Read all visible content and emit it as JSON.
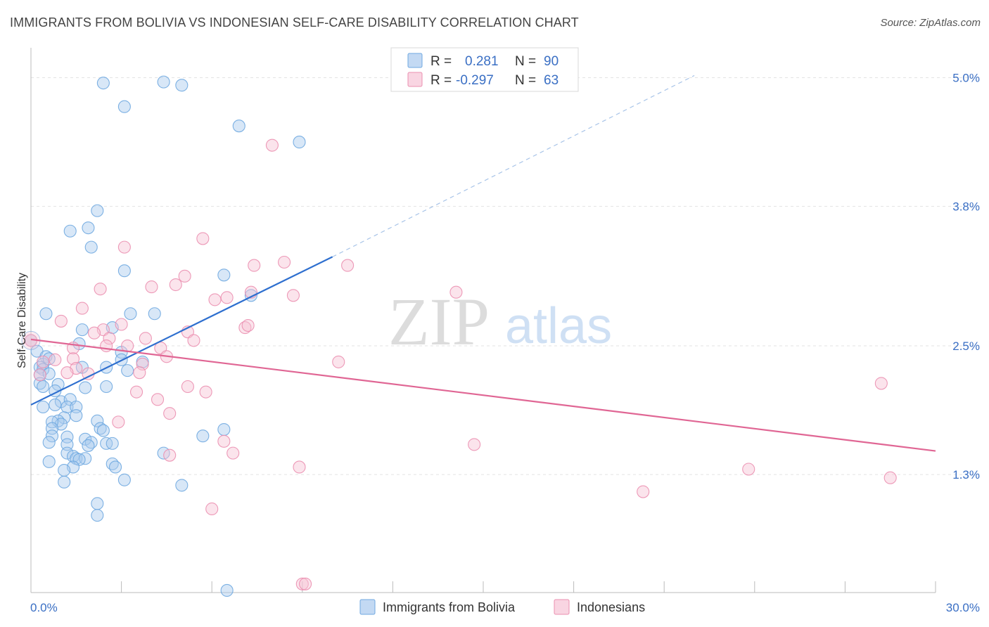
{
  "header": {
    "title": "IMMIGRANTS FROM BOLIVIA VS INDONESIAN SELF-CARE DISABILITY CORRELATION CHART",
    "source": "Source: ZipAtlas.com"
  },
  "watermark": {
    "part1": "ZIP",
    "part2": "atlas"
  },
  "colors": {
    "blue": "#6fa8e0",
    "blue_fill": "#a9c9ee",
    "blue_line": "#2e6fcf",
    "pink": "#eb8fb0",
    "pink_fill": "#f6c3d5",
    "pink_line": "#e06694",
    "grid": "#e3e3e3",
    "tick_text": "#3a6fc4"
  },
  "legend": {
    "rows": [
      {
        "r_label": "R =",
        "r_value": "0.281",
        "n_label": "N =",
        "n_value": "90"
      },
      {
        "r_label": "R =",
        "r_value": "-0.297",
        "n_label": "N =",
        "n_value": "63"
      }
    ]
  },
  "bottom_legend": [
    "Immigrants from Bolivia",
    "Indonesians"
  ],
  "chart_data": {
    "type": "scatter",
    "title": "IMMIGRANTS FROM BOLIVIA VS INDONESIAN SELF-CARE DISABILITY CORRELATION CHART",
    "xlabel": "",
    "ylabel": "Self-Care Disability",
    "xlim": [
      0,
      30
    ],
    "ylim": [
      0.2,
      5.2
    ],
    "x_tick_labels": [
      {
        "value": 0,
        "label": "0.0%"
      },
      {
        "value": 30,
        "label": "30.0%"
      }
    ],
    "y_tick_labels": [
      {
        "value": 5.0,
        "label": "5.0%"
      },
      {
        "value": 3.8,
        "label": "3.8%"
      },
      {
        "value": 2.5,
        "label": "2.5%"
      },
      {
        "value": 1.3,
        "label": "1.3%"
      }
    ],
    "grid": true,
    "legend_position": "top-center",
    "series": [
      {
        "name": "Immigrants from Bolivia",
        "R": 0.281,
        "N": 90,
        "trend": {
          "x": [
            0,
            10
          ],
          "y": [
            1.95,
            3.33
          ],
          "dashed_to": {
            "x": 22,
            "y": 5.02
          }
        },
        "points": [
          [
            2.4,
            4.95
          ],
          [
            4.4,
            4.96
          ],
          [
            5.0,
            4.93
          ],
          [
            3.1,
            4.73
          ],
          [
            6.9,
            4.55
          ],
          [
            8.9,
            4.4
          ],
          [
            2.2,
            3.76
          ],
          [
            1.3,
            3.57
          ],
          [
            1.9,
            3.6
          ],
          [
            2.0,
            3.42
          ],
          [
            3.1,
            3.2
          ],
          [
            6.4,
            3.16
          ],
          [
            7.3,
            2.97
          ],
          [
            0.5,
            2.8
          ],
          [
            3.3,
            2.8
          ],
          [
            4.1,
            2.8
          ],
          [
            1.7,
            2.65
          ],
          [
            2.7,
            2.67
          ],
          [
            0.0,
            2.55
          ],
          [
            0.2,
            2.45
          ],
          [
            1.6,
            2.52
          ],
          [
            3.0,
            2.44
          ],
          [
            0.5,
            2.4
          ],
          [
            0.4,
            2.33
          ],
          [
            0.6,
            2.38
          ],
          [
            0.3,
            2.3
          ],
          [
            0.4,
            2.28
          ],
          [
            2.5,
            2.3
          ],
          [
            3.0,
            2.37
          ],
          [
            3.7,
            2.35
          ],
          [
            1.7,
            2.3
          ],
          [
            0.3,
            2.23
          ],
          [
            0.6,
            2.24
          ],
          [
            3.2,
            2.27
          ],
          [
            0.3,
            2.15
          ],
          [
            0.4,
            2.12
          ],
          [
            0.9,
            2.14
          ],
          [
            1.8,
            2.11
          ],
          [
            2.5,
            2.12
          ],
          [
            0.8,
            2.08
          ],
          [
            1.0,
            1.98
          ],
          [
            1.3,
            2.0
          ],
          [
            0.4,
            1.93
          ],
          [
            0.8,
            1.95
          ],
          [
            1.2,
            1.93
          ],
          [
            1.5,
            1.93
          ],
          [
            1.1,
            1.83
          ],
          [
            1.5,
            1.85
          ],
          [
            0.9,
            1.8
          ],
          [
            2.2,
            1.8
          ],
          [
            1.0,
            1.77
          ],
          [
            0.7,
            1.79
          ],
          [
            0.7,
            1.73
          ],
          [
            2.3,
            1.73
          ],
          [
            2.4,
            1.71
          ],
          [
            6.4,
            1.72
          ],
          [
            0.7,
            1.66
          ],
          [
            5.7,
            1.66
          ],
          [
            1.2,
            1.65
          ],
          [
            1.8,
            1.63
          ],
          [
            0.6,
            1.6
          ],
          [
            1.2,
            1.58
          ],
          [
            2.0,
            1.6
          ],
          [
            2.5,
            1.59
          ],
          [
            2.7,
            1.59
          ],
          [
            1.9,
            1.57
          ],
          [
            1.2,
            1.5
          ],
          [
            4.4,
            1.5
          ],
          [
            1.4,
            1.47
          ],
          [
            1.5,
            1.45
          ],
          [
            1.8,
            1.45
          ],
          [
            1.6,
            1.44
          ],
          [
            0.6,
            1.42
          ],
          [
            2.7,
            1.4
          ],
          [
            2.8,
            1.37
          ],
          [
            1.4,
            1.37
          ],
          [
            1.1,
            1.34
          ],
          [
            3.1,
            1.25
          ],
          [
            1.1,
            1.23
          ],
          [
            5.0,
            1.2
          ],
          [
            2.2,
            1.03
          ],
          [
            2.2,
            0.92
          ],
          [
            6.5,
            0.22
          ]
        ]
      },
      {
        "name": "Indonesians",
        "R": -0.297,
        "N": 63,
        "trend": {
          "x": [
            0,
            30
          ],
          "y": [
            2.56,
            1.52
          ]
        },
        "points": [
          [
            8.0,
            4.37
          ],
          [
            5.7,
            3.5
          ],
          [
            3.1,
            3.42
          ],
          [
            8.4,
            3.28
          ],
          [
            7.4,
            3.25
          ],
          [
            10.5,
            3.25
          ],
          [
            5.1,
            3.15
          ],
          [
            4.8,
            3.07
          ],
          [
            4.0,
            3.05
          ],
          [
            2.3,
            3.03
          ],
          [
            14.1,
            3.0
          ],
          [
            7.3,
            3.0
          ],
          [
            8.7,
            2.97
          ],
          [
            6.5,
            2.95
          ],
          [
            6.1,
            2.93
          ],
          [
            1.7,
            2.85
          ],
          [
            1.0,
            2.73
          ],
          [
            3.0,
            2.7
          ],
          [
            7.1,
            2.67
          ],
          [
            7.2,
            2.69
          ],
          [
            2.4,
            2.65
          ],
          [
            2.1,
            2.62
          ],
          [
            5.2,
            2.63
          ],
          [
            2.6,
            2.57
          ],
          [
            3.8,
            2.57
          ],
          [
            5.4,
            2.55
          ],
          [
            2.5,
            2.5
          ],
          [
            3.2,
            2.5
          ],
          [
            4.3,
            2.48
          ],
          [
            1.4,
            2.48
          ],
          [
            0.0,
            2.55
          ],
          [
            4.5,
            2.4
          ],
          [
            0.4,
            2.35
          ],
          [
            0.8,
            2.37
          ],
          [
            1.4,
            2.38
          ],
          [
            10.2,
            2.35
          ],
          [
            3.7,
            2.33
          ],
          [
            1.5,
            2.29
          ],
          [
            1.2,
            2.25
          ],
          [
            3.6,
            2.25
          ],
          [
            0.3,
            2.23
          ],
          [
            1.9,
            2.24
          ],
          [
            5.2,
            2.12
          ],
          [
            5.8,
            2.07
          ],
          [
            3.5,
            2.07
          ],
          [
            4.2,
            2.0
          ],
          [
            28.2,
            2.15
          ],
          [
            4.6,
            1.87
          ],
          [
            2.9,
            1.79
          ],
          [
            6.4,
            1.61
          ],
          [
            14.7,
            1.58
          ],
          [
            6.7,
            1.5
          ],
          [
            4.6,
            1.48
          ],
          [
            8.9,
            1.37
          ],
          [
            23.8,
            1.35
          ],
          [
            28.5,
            1.27
          ],
          [
            20.3,
            1.14
          ],
          [
            6.0,
            0.98
          ],
          [
            9.0,
            0.28
          ],
          [
            9.1,
            0.28
          ]
        ]
      }
    ]
  }
}
